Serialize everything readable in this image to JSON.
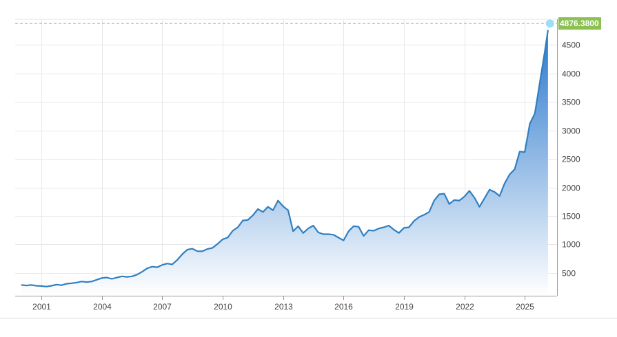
{
  "chart_data": {
    "type": "area",
    "x_ticks": [
      "2001",
      "2004",
      "2007",
      "2010",
      "2013",
      "2016",
      "2019",
      "2022",
      "2025"
    ],
    "y_ticks": [
      500,
      1000,
      1500,
      2000,
      2500,
      3000,
      3500,
      4000,
      4500
    ],
    "ylim": [
      100,
      4950
    ],
    "xlim": [
      1999.7,
      2026.6
    ],
    "grid": true,
    "last_value_label": "4876.3800",
    "reference_value": 4876.38,
    "colors": {
      "line": "#2f7fc1",
      "fill_top": "#2a78cd",
      "fill_bottom": "#ffffff",
      "last_label_bg": "#8cc152",
      "reference_line": "#8cc152",
      "marker": "#9fdcf6"
    },
    "series": [
      {
        "x": [
          2000.0,
          2000.25,
          2000.5,
          2000.75,
          2001.0,
          2001.25,
          2001.5,
          2001.75,
          2002.0,
          2002.25,
          2002.5,
          2002.75,
          2003.0,
          2003.25,
          2003.5,
          2003.75,
          2004.0,
          2004.25,
          2004.5,
          2004.75,
          2005.0,
          2005.25,
          2005.5,
          2005.75,
          2006.0,
          2006.25,
          2006.5,
          2006.75,
          2007.0,
          2007.25,
          2007.5,
          2007.75,
          2008.0,
          2008.25,
          2008.5,
          2008.75,
          2009.0,
          2009.25,
          2009.5,
          2009.75,
          2010.0,
          2010.25,
          2010.5,
          2010.75,
          2011.0,
          2011.25,
          2011.5,
          2011.75,
          2012.0,
          2012.25,
          2012.5,
          2012.75,
          2013.0,
          2013.25,
          2013.5,
          2013.75,
          2014.0,
          2014.25,
          2014.5,
          2014.75,
          2015.0,
          2015.25,
          2015.5,
          2015.75,
          2016.0,
          2016.25,
          2016.5,
          2016.75,
          2017.0,
          2017.25,
          2017.5,
          2017.75,
          2018.0,
          2018.25,
          2018.5,
          2018.75,
          2019.0,
          2019.25,
          2019.5,
          2019.75,
          2020.0,
          2020.25,
          2020.5,
          2020.75,
          2021.0,
          2021.25,
          2021.5,
          2021.75,
          2022.0,
          2022.25,
          2022.5,
          2022.75,
          2023.0,
          2023.25,
          2023.5,
          2023.75,
          2024.0,
          2024.25,
          2024.5,
          2024.75,
          2025.0,
          2025.25,
          2025.5,
          2025.75,
          2026.0,
          2026.15
        ],
        "values": [
          290,
          280,
          290,
          275,
          270,
          260,
          275,
          295,
          285,
          310,
          320,
          330,
          350,
          340,
          350,
          380,
          410,
          420,
          395,
          420,
          440,
          430,
          440,
          470,
          520,
          580,
          610,
          600,
          640,
          665,
          650,
          730,
          830,
          910,
          925,
          880,
          880,
          920,
          940,
          1010,
          1090,
          1120,
          1240,
          1300,
          1420,
          1430,
          1510,
          1620,
          1570,
          1660,
          1600,
          1770,
          1670,
          1600,
          1230,
          1320,
          1200,
          1280,
          1330,
          1210,
          1180,
          1180,
          1170,
          1120,
          1070,
          1230,
          1320,
          1310,
          1150,
          1250,
          1240,
          1280,
          1300,
          1330,
          1260,
          1200,
          1290,
          1300,
          1410,
          1480,
          1520,
          1570,
          1770,
          1880,
          1890,
          1710,
          1780,
          1770,
          1840,
          1940,
          1820,
          1660,
          1810,
          1960,
          1920,
          1850,
          2070,
          2230,
          2320,
          2630,
          2620,
          3120,
          3300,
          3850,
          4400,
          4760
        ]
      }
    ]
  }
}
